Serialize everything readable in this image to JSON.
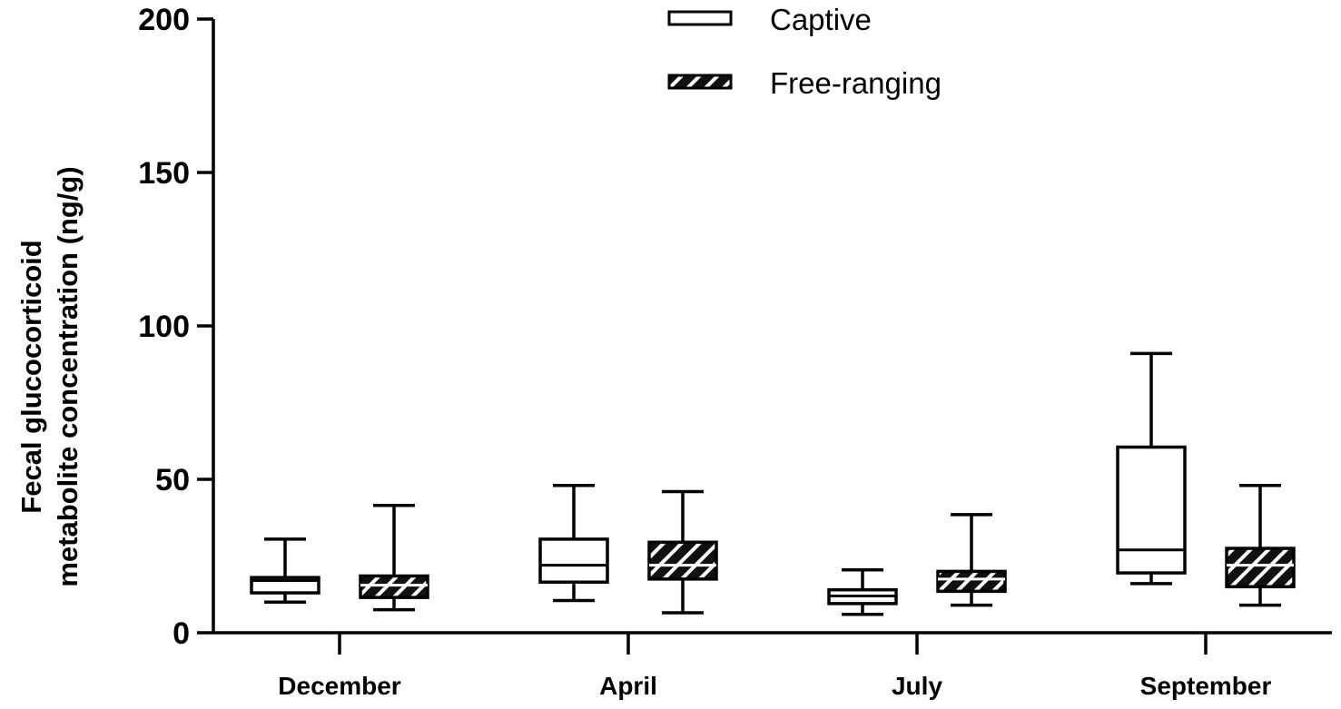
{
  "chart_data": {
    "type": "boxplot",
    "title": "",
    "xlabel": "",
    "ylabel_lines": [
      "Fecal glucocorticoid",
      "metabolite concentration (ng/g)"
    ],
    "ylim": [
      0,
      200
    ],
    "yticks": [
      0,
      50,
      100,
      150,
      200
    ],
    "categories": [
      "December",
      "April",
      "July",
      "September"
    ],
    "legend_position": "top-center",
    "series": [
      {
        "name": "Captive",
        "fill": "#ffffff",
        "pattern": "none",
        "boxes": [
          {
            "min": 10,
            "q1": 13,
            "median": 17,
            "q3": 18,
            "max": 30.5
          },
          {
            "min": 10.5,
            "q1": 16.5,
            "median": 22,
            "q3": 30.5,
            "max": 48
          },
          {
            "min": 6,
            "q1": 9.5,
            "median": 12,
            "q3": 14,
            "max": 20.5
          },
          {
            "min": 16,
            "q1": 19.5,
            "median": 27,
            "q3": 60.5,
            "max": 91
          }
        ]
      },
      {
        "name": "Free-ranging",
        "fill": "#000000",
        "pattern": "hatched",
        "boxes": [
          {
            "min": 7.5,
            "q1": 11.5,
            "median": 15.5,
            "q3": 18.5,
            "max": 41.5
          },
          {
            "min": 6.5,
            "q1": 17.5,
            "median": 22,
            "q3": 29.5,
            "max": 46
          },
          {
            "min": 9,
            "q1": 13.5,
            "median": 17.5,
            "q3": 20,
            "max": 38.5
          },
          {
            "min": 9,
            "q1": 15,
            "median": 22,
            "q3": 27.5,
            "max": 48
          }
        ]
      }
    ]
  }
}
